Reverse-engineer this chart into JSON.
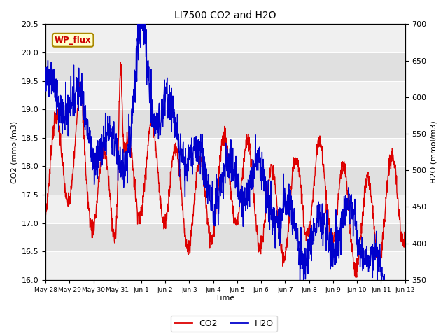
{
  "title": "LI7500 CO2 and H2O",
  "xlabel": "Time",
  "ylabel_left": "CO2 (mmol/m3)",
  "ylabel_right": "H2O (mmol/m3)",
  "ylim_left": [
    16.0,
    20.5
  ],
  "ylim_right": [
    350,
    700
  ],
  "co2_color": "#dd0000",
  "h2o_color": "#0000cc",
  "line_width": 1.0,
  "plot_bg": "#e0e0e0",
  "annotation_text": "WP_flux",
  "legend_co2": "CO2",
  "legend_h2o": "H2O",
  "xtick_labels": [
    "May 28",
    "May 29",
    "May 30",
    "May 31",
    "Jun 1",
    "Jun 2",
    "Jun 3",
    "Jun 4",
    "Jun 5",
    "Jun 6",
    "Jun 7",
    "Jun 8",
    "Jun 9",
    "Jun 10",
    "Jun 11",
    "Jun 12"
  ],
  "n_points": 1500
}
